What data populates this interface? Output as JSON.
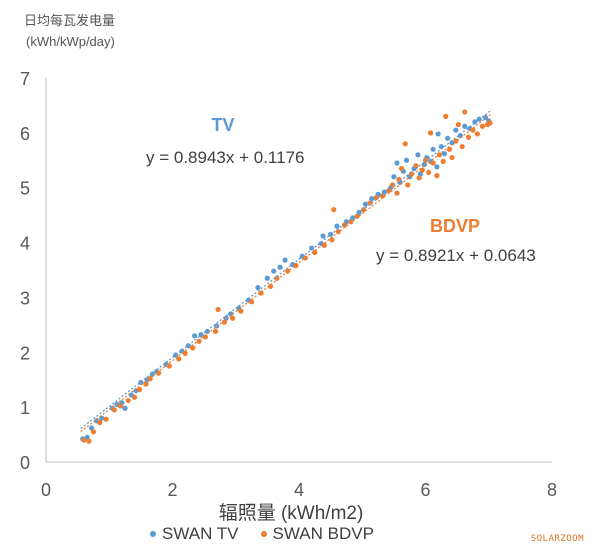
{
  "chart_data": {
    "type": "scatter",
    "ylabel_line1": "日均每瓦发电量",
    "ylabel_line2": "(kWh/kWp/day)",
    "xlabel": "辐照量 (kWh/m2)",
    "xlim": [
      0,
      8
    ],
    "ylim": [
      0,
      7
    ],
    "xticks": [
      0,
      2,
      4,
      6,
      8
    ],
    "yticks": [
      0,
      1,
      2,
      3,
      4,
      5,
      6,
      7
    ],
    "grid": false,
    "legend_position": "bottom",
    "series": [
      {
        "name": "SWAN TV",
        "color": "#5b9bd5",
        "trendline": {
          "slope": 0.8943,
          "intercept": 0.1176,
          "label": "TV",
          "equation": "y = 0.8943x + 0.1176"
        },
        "points": [
          [
            0.58,
            0.42
          ],
          [
            0.65,
            0.45
          ],
          [
            0.72,
            0.62
          ],
          [
            0.8,
            0.75
          ],
          [
            0.88,
            0.8
          ],
          [
            1.05,
            0.98
          ],
          [
            1.12,
            1.05
          ],
          [
            1.2,
            1.08
          ],
          [
            1.25,
            0.98
          ],
          [
            1.35,
            1.22
          ],
          [
            1.42,
            1.3
          ],
          [
            1.5,
            1.45
          ],
          [
            1.6,
            1.5
          ],
          [
            1.68,
            1.6
          ],
          [
            1.75,
            1.65
          ],
          [
            1.9,
            1.78
          ],
          [
            2.05,
            1.95
          ],
          [
            2.15,
            2.02
          ],
          [
            2.25,
            2.12
          ],
          [
            2.35,
            2.3
          ],
          [
            2.45,
            2.32
          ],
          [
            2.55,
            2.38
          ],
          [
            2.7,
            2.48
          ],
          [
            2.85,
            2.62
          ],
          [
            2.92,
            2.7
          ],
          [
            3.05,
            2.8
          ],
          [
            3.2,
            2.95
          ],
          [
            3.35,
            3.18
          ],
          [
            3.5,
            3.35
          ],
          [
            3.6,
            3.48
          ],
          [
            3.7,
            3.55
          ],
          [
            3.78,
            3.68
          ],
          [
            3.9,
            3.6
          ],
          [
            4.05,
            3.75
          ],
          [
            4.2,
            3.9
          ],
          [
            4.35,
            3.98
          ],
          [
            4.38,
            4.12
          ],
          [
            4.5,
            4.15
          ],
          [
            4.6,
            4.3
          ],
          [
            4.75,
            4.38
          ],
          [
            4.85,
            4.45
          ],
          [
            4.95,
            4.55
          ],
          [
            5.05,
            4.7
          ],
          [
            5.15,
            4.8
          ],
          [
            5.25,
            4.88
          ],
          [
            5.35,
            4.92
          ],
          [
            5.45,
            5.0
          ],
          [
            5.5,
            5.2
          ],
          [
            5.55,
            5.45
          ],
          [
            5.6,
            5.1
          ],
          [
            5.65,
            5.3
          ],
          [
            5.7,
            5.5
          ],
          [
            5.75,
            5.2
          ],
          [
            5.82,
            5.35
          ],
          [
            5.88,
            5.6
          ],
          [
            5.92,
            5.25
          ],
          [
            5.98,
            5.42
          ],
          [
            6.02,
            5.55
          ],
          [
            6.08,
            5.48
          ],
          [
            6.12,
            5.7
          ],
          [
            6.18,
            5.38
          ],
          [
            6.2,
            5.98
          ],
          [
            6.25,
            5.75
          ],
          [
            6.3,
            5.62
          ],
          [
            6.35,
            5.9
          ],
          [
            6.42,
            5.82
          ],
          [
            6.48,
            6.05
          ],
          [
            6.55,
            5.95
          ],
          [
            6.62,
            6.12
          ],
          [
            6.7,
            6.08
          ],
          [
            6.78,
            6.2
          ],
          [
            6.85,
            6.25
          ],
          [
            6.95,
            6.28
          ],
          [
            7.0,
            6.22
          ]
        ]
      },
      {
        "name": "SWAN BDVP",
        "color": "#ed7d31",
        "trendline": {
          "slope": 0.8921,
          "intercept": 0.0643,
          "label": "BDVP",
          "equation": "y = 0.8921x + 0.0643"
        },
        "points": [
          [
            0.6,
            0.4
          ],
          [
            0.68,
            0.38
          ],
          [
            0.75,
            0.55
          ],
          [
            0.85,
            0.72
          ],
          [
            0.95,
            0.78
          ],
          [
            1.08,
            0.95
          ],
          [
            1.18,
            1.02
          ],
          [
            1.3,
            1.12
          ],
          [
            1.4,
            1.18
          ],
          [
            1.48,
            1.32
          ],
          [
            1.58,
            1.42
          ],
          [
            1.65,
            1.52
          ],
          [
            1.78,
            1.62
          ],
          [
            1.95,
            1.75
          ],
          [
            2.1,
            1.88
          ],
          [
            2.2,
            1.98
          ],
          [
            2.32,
            2.08
          ],
          [
            2.42,
            2.2
          ],
          [
            2.52,
            2.28
          ],
          [
            2.68,
            2.38
          ],
          [
            2.72,
            2.78
          ],
          [
            2.82,
            2.55
          ],
          [
            2.95,
            2.62
          ],
          [
            3.08,
            2.75
          ],
          [
            3.25,
            2.92
          ],
          [
            3.4,
            3.08
          ],
          [
            3.55,
            3.2
          ],
          [
            3.65,
            3.35
          ],
          [
            3.82,
            3.48
          ],
          [
            3.95,
            3.58
          ],
          [
            4.1,
            3.72
          ],
          [
            4.25,
            3.82
          ],
          [
            4.4,
            3.95
          ],
          [
            4.52,
            4.05
          ],
          [
            4.55,
            4.6
          ],
          [
            4.62,
            4.2
          ],
          [
            4.72,
            4.32
          ],
          [
            4.82,
            4.38
          ],
          [
            4.92,
            4.48
          ],
          [
            5.02,
            4.6
          ],
          [
            5.12,
            4.72
          ],
          [
            5.22,
            4.82
          ],
          [
            5.32,
            4.85
          ],
          [
            5.42,
            4.95
          ],
          [
            5.48,
            5.05
          ],
          [
            5.55,
            4.9
          ],
          [
            5.58,
            5.15
          ],
          [
            5.62,
            5.35
          ],
          [
            5.68,
            5.8
          ],
          [
            5.72,
            5.05
          ],
          [
            5.78,
            5.25
          ],
          [
            5.85,
            5.4
          ],
          [
            5.9,
            5.18
          ],
          [
            5.95,
            5.32
          ],
          [
            6.0,
            5.5
          ],
          [
            6.05,
            5.28
          ],
          [
            6.08,
            6.0
          ],
          [
            6.12,
            5.45
          ],
          [
            6.18,
            5.22
          ],
          [
            6.22,
            5.6
          ],
          [
            6.28,
            5.48
          ],
          [
            6.32,
            6.3
          ],
          [
            6.38,
            5.7
          ],
          [
            6.42,
            5.55
          ],
          [
            6.48,
            5.85
          ],
          [
            6.52,
            6.15
          ],
          [
            6.58,
            5.75
          ],
          [
            6.62,
            6.38
          ],
          [
            6.68,
            5.92
          ],
          [
            6.75,
            6.05
          ],
          [
            6.82,
            5.98
          ],
          [
            6.9,
            6.12
          ],
          [
            6.98,
            6.15
          ],
          [
            7.02,
            6.18
          ]
        ]
      }
    ]
  },
  "watermark": "SOLARZOOM"
}
